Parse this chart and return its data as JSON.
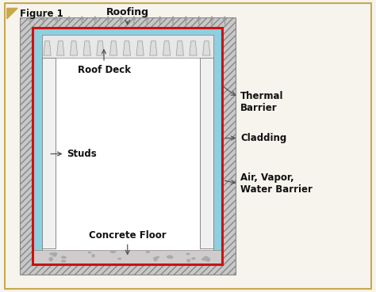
{
  "bg_color": "#f7f4ee",
  "border_color": "#c8a84b",
  "figure_label": "Figure 1",
  "roofing_label": "Roofing",
  "labels": {
    "roof_deck": "Roof Deck",
    "studs": "Studs",
    "concrete_floor": "Concrete Floor",
    "thermal_barrier": "Thermal\nBarrier",
    "cladding": "Cladding",
    "air_vapor": "Air, Vapor,\nWater Barrier"
  },
  "blue_color": "#8ecfe0",
  "red_color": "#cc1111",
  "white_color": "#ffffff",
  "hatch_fill": "#c8c8c8",
  "concrete_fill": "#d0cccc",
  "roof_deck_fill": "#e8e8e8",
  "stud_fill": "#f0f0f0",
  "dark_gray": "#555555",
  "text_color": "#111111",
  "arrow_color": "#555555",
  "triangle_color": "#c8a84b"
}
